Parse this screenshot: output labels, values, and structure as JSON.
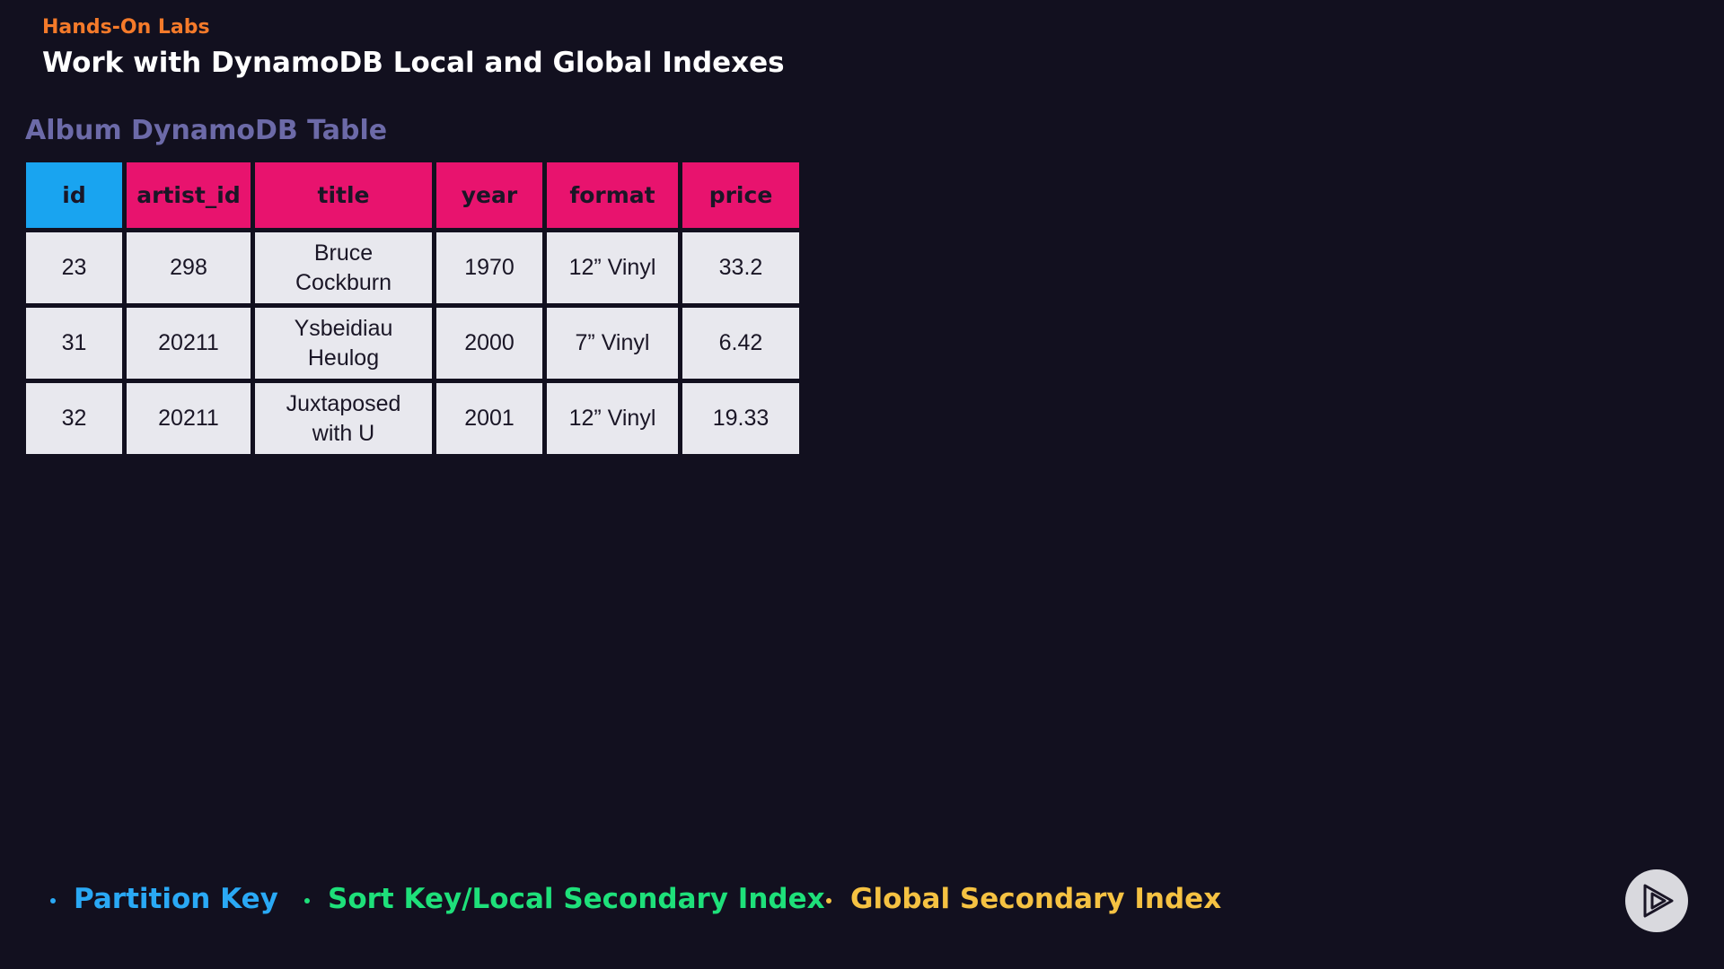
{
  "header": {
    "label": "Hands-On Labs",
    "title": "Work with DynamoDB Local and Global Indexes"
  },
  "table": {
    "caption": "Album DynamoDB Table",
    "columns": [
      "id",
      "artist_id",
      "title",
      "year",
      "format",
      "price"
    ],
    "rows": [
      [
        23,
        298,
        "Bruce Cockburn",
        1970,
        "12” Vinyl",
        33.2
      ],
      [
        31,
        20211,
        "Ysbeidiau Heulog",
        2000,
        "7” Vinyl",
        6.42
      ],
      [
        32,
        20211,
        "Juxtaposed with U",
        2001,
        "12” Vinyl",
        19.33
      ]
    ]
  },
  "legend": {
    "items": [
      "Partition Key",
      "Sort Key/Local Secondary Index",
      "Global Secondary Index"
    ]
  }
}
